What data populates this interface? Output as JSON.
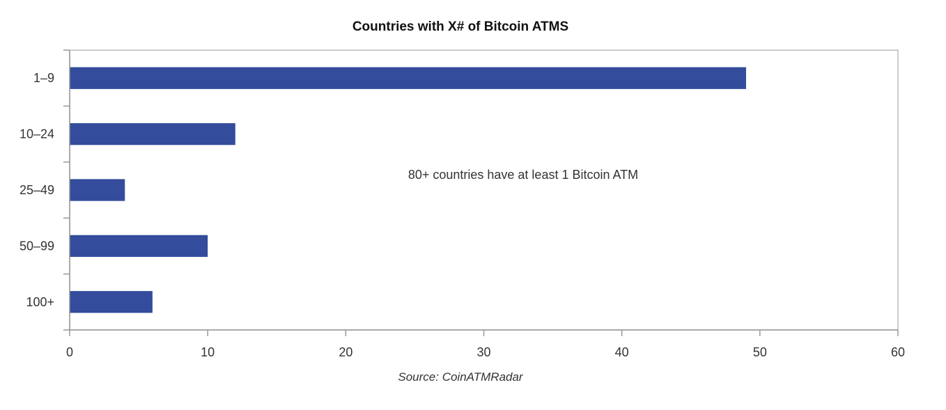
{
  "chart_data": {
    "type": "bar",
    "orientation": "horizontal",
    "title": "Countries with X# of Bitcoin ATMS",
    "categories": [
      "1-9",
      "10-24",
      "25-49",
      "50-99",
      "100+"
    ],
    "values": [
      49,
      12,
      4,
      10,
      6
    ],
    "xlim": [
      0,
      60
    ],
    "xticks": [
      0,
      10,
      20,
      30,
      40,
      50,
      60
    ],
    "xlabel": "",
    "ylabel": "",
    "grid": false,
    "legend": "none",
    "annotation": "80+ countries have at least 1 Bitcoin ATM",
    "source": "Source: CoinATMRadar",
    "colors": {
      "bar": "#344C9C",
      "axis": "#999999",
      "text": "#333333",
      "title": "#111111"
    }
  }
}
